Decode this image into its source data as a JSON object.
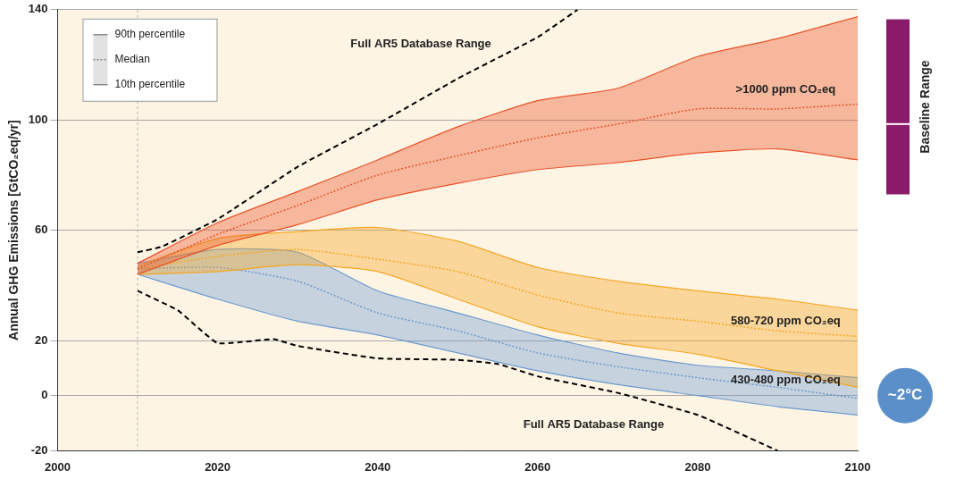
{
  "chart_data": {
    "type": "line",
    "y_label": "Annual GHG Emissions [GtCO₂eq/yr]",
    "xlim": [
      2000,
      2100
    ],
    "xticks": [
      2000,
      2020,
      2040,
      2060,
      2080,
      2100
    ],
    "ylim": [
      -20,
      140
    ],
    "yticks": [
      -20,
      0,
      20,
      60,
      100,
      140
    ],
    "grid": true,
    "legend": "top-left",
    "percentile_labels": {
      "p90": "90th percentile",
      "median": "Median",
      "p10": "10th percentile"
    },
    "reference_x": 2010,
    "series": [
      {
        "name": ">1000 ppm CO₂eq",
        "type": "band",
        "color": "#e9532b",
        "x": [
          2010,
          2020,
          2030,
          2040,
          2050,
          2060,
          2070,
          2080,
          2090,
          2100
        ],
        "p90": [
          48,
          62.7,
          74,
          85.5,
          97.5,
          107,
          111.5,
          123,
          129.5,
          137.5
        ],
        "median": [
          46,
          58.5,
          69,
          80,
          87,
          93.5,
          98.5,
          104,
          104,
          105.7
        ],
        "p10": [
          44,
          54.5,
          62,
          71,
          77,
          82,
          84.5,
          88,
          89.5,
          85.5
        ],
        "label_x": 2091,
        "label_y": 111
      },
      {
        "name": "580-720 ppm CO₂eq",
        "type": "band",
        "color": "#f5a623",
        "x": [
          2010,
          2020,
          2030,
          2040,
          2050,
          2060,
          2070,
          2080,
          2090,
          2100
        ],
        "p90": [
          47,
          57,
          59.5,
          61,
          56,
          46.5,
          41.5,
          38,
          35,
          31
        ],
        "median": [
          46,
          50.5,
          53,
          49.5,
          45,
          36.5,
          30,
          27,
          23.5,
          21.5
        ],
        "p10": [
          44,
          45,
          47.5,
          45,
          35,
          25,
          19,
          15,
          9,
          3
        ],
        "label_x": 2091,
        "label_y": 27
      },
      {
        "name": "430-480 ppm CO₂eq",
        "type": "band",
        "color": "#6b9bd1",
        "x": [
          2010,
          2020,
          2030,
          2040,
          2050,
          2060,
          2070,
          2080,
          2090,
          2100
        ],
        "p90": [
          48,
          53,
          52,
          38,
          30,
          22,
          15.5,
          11,
          9,
          6.5
        ],
        "median": [
          46,
          46.5,
          41.5,
          30,
          23.5,
          15.5,
          10.5,
          6.5,
          3,
          -1
        ],
        "p10": [
          44,
          35,
          27,
          22,
          15.5,
          9,
          4,
          0,
          -4,
          -7
        ],
        "label_x": 2091,
        "label_y": 5.7
      },
      {
        "name": "Full AR5 Database Range",
        "type": "line",
        "color": "#000000",
        "line_style": "dashed",
        "x": [
          2010,
          2013,
          2020,
          2030,
          2040,
          2050,
          2060,
          2065
        ],
        "values": [
          52,
          54,
          64,
          83,
          98.5,
          115,
          130,
          140
        ],
        "label_x": 2045.4,
        "label_y": 127.5
      },
      {
        "name": "Full AR5 Database Range",
        "type": "line",
        "color": "#000000",
        "line_style": "dashed",
        "x": [
          2010,
          2015,
          2020,
          2027,
          2030,
          2040,
          2050,
          2055,
          2060,
          2070,
          2080,
          2090
        ],
        "values": [
          38,
          31,
          19,
          20.5,
          18,
          13.5,
          13,
          11.5,
          7,
          1,
          -7,
          -20
        ],
        "label_x": 2067,
        "label_y": -10.5
      }
    ],
    "baseline_range": {
      "label": "Baseline Range",
      "min": 73,
      "median": 98.5,
      "max": 136.5,
      "color": "#8b1a6b"
    },
    "annotations": [
      {
        "text": "~2°C",
        "y": 0,
        "color": "#5b8fc9"
      }
    ]
  }
}
